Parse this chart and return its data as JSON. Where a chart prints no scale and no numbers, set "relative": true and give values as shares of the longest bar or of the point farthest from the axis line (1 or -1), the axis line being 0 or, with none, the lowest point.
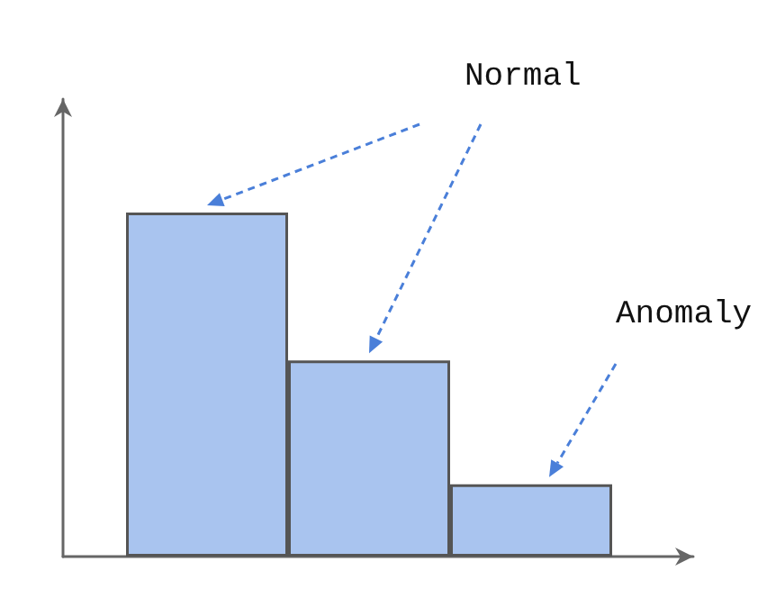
{
  "chart_data": {
    "type": "bar",
    "relative": true,
    "categories": [
      null,
      null,
      null
    ],
    "values": [
      1,
      0.57,
      0.21
    ],
    "color": "#a9c4ef",
    "annotations": [
      "Normal",
      "Anomaly"
    ]
  }
}
